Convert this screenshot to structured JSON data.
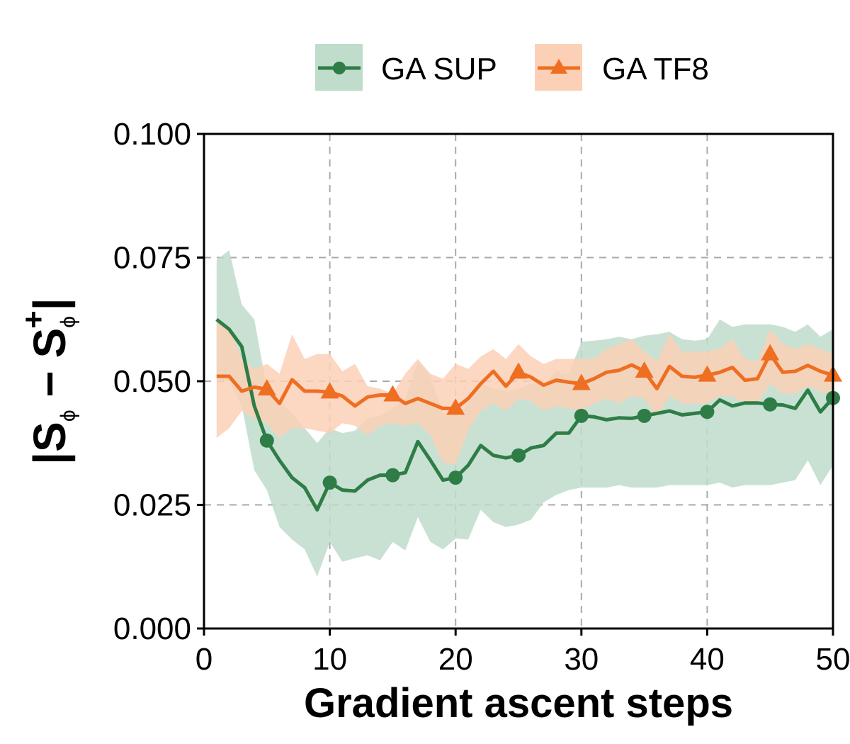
{
  "chart_data": {
    "type": "line",
    "xlabel": "Gradient ascent steps",
    "ylabel": "|S_phi - S_phi^+|",
    "xlim": [
      0,
      50
    ],
    "ylim": [
      0.0,
      0.1
    ],
    "x_ticks": [
      "0",
      "10",
      "20",
      "30",
      "40",
      "50"
    ],
    "y_ticks": [
      "0.000",
      "0.025",
      "0.050",
      "0.075",
      "0.100"
    ],
    "grid": "dashed, both axes",
    "legend_position": "top-center",
    "x": [
      1,
      2,
      3,
      4,
      5,
      6,
      7,
      8,
      9,
      10,
      11,
      12,
      13,
      14,
      15,
      16,
      17,
      18,
      19,
      20,
      21,
      22,
      23,
      24,
      25,
      26,
      27,
      28,
      29,
      30,
      31,
      32,
      33,
      34,
      35,
      36,
      37,
      38,
      39,
      40,
      41,
      42,
      43,
      44,
      45,
      46,
      47,
      48,
      49,
      50
    ],
    "series": [
      {
        "name": "GA SUP",
        "color": "#2e7d46",
        "band_color": "#c0dccb",
        "marker": "circle",
        "marker_every": 5,
        "values": [
          0.0625,
          0.0605,
          0.057,
          0.045,
          0.038,
          0.034,
          0.0305,
          0.0285,
          0.024,
          0.0295,
          0.028,
          0.0278,
          0.03,
          0.031,
          0.031,
          0.0315,
          0.0378,
          0.034,
          0.03,
          0.0305,
          0.033,
          0.037,
          0.035,
          0.0345,
          0.035,
          0.0365,
          0.037,
          0.0395,
          0.0395,
          0.043,
          0.0428,
          0.0422,
          0.0426,
          0.0425,
          0.043,
          0.0435,
          0.044,
          0.0432,
          0.0435,
          0.0438,
          0.0462,
          0.045,
          0.0456,
          0.0456,
          0.0453,
          0.0452,
          0.0445,
          0.0482,
          0.0438,
          0.0466
        ],
        "lower": [
          0.0505,
          0.05,
          0.045,
          0.032,
          0.028,
          0.0205,
          0.018,
          0.016,
          0.0105,
          0.0175,
          0.0135,
          0.0142,
          0.0148,
          0.0138,
          0.0175,
          0.0158,
          0.0225,
          0.0175,
          0.016,
          0.0182,
          0.018,
          0.024,
          0.0215,
          0.0205,
          0.021,
          0.022,
          0.0255,
          0.027,
          0.028,
          0.0285,
          0.0285,
          0.0285,
          0.029,
          0.0285,
          0.0285,
          0.0285,
          0.029,
          0.029,
          0.029,
          0.029,
          0.0295,
          0.0285,
          0.029,
          0.029,
          0.029,
          0.0295,
          0.03,
          0.034,
          0.029,
          0.033
        ],
        "upper": [
          0.0745,
          0.0765,
          0.0655,
          0.0625,
          0.0485,
          0.046,
          0.0435,
          0.0405,
          0.0375,
          0.0405,
          0.0395,
          0.04,
          0.0425,
          0.043,
          0.0445,
          0.0465,
          0.054,
          0.051,
          0.0435,
          0.043,
          0.0455,
          0.0495,
          0.0485,
          0.048,
          0.0485,
          0.0495,
          0.0495,
          0.052,
          0.0515,
          0.058,
          0.0582,
          0.0585,
          0.059,
          0.0585,
          0.0592,
          0.0595,
          0.06,
          0.0585,
          0.0582,
          0.0585,
          0.0625,
          0.061,
          0.0615,
          0.0615,
          0.0615,
          0.061,
          0.06,
          0.0615,
          0.059,
          0.0605
        ]
      },
      {
        "name": "GA TF8",
        "color": "#ee6e22",
        "band_color": "#fcd0b6",
        "marker": "triangle",
        "marker_every": 5,
        "values": [
          0.051,
          0.051,
          0.048,
          0.0488,
          0.0484,
          0.0455,
          0.0503,
          0.048,
          0.048,
          0.0478,
          0.047,
          0.045,
          0.0468,
          0.0472,
          0.0472,
          0.0455,
          0.0465,
          0.0455,
          0.0445,
          0.0445,
          0.0465,
          0.0495,
          0.052,
          0.049,
          0.0518,
          0.0508,
          0.0492,
          0.0502,
          0.0498,
          0.0495,
          0.0505,
          0.0518,
          0.0522,
          0.0533,
          0.052,
          0.0485,
          0.053,
          0.051,
          0.0508,
          0.0512,
          0.0518,
          0.0528,
          0.0502,
          0.0505,
          0.0555,
          0.0518,
          0.052,
          0.0532,
          0.052,
          0.0512
        ],
        "lower": [
          0.0385,
          0.0405,
          0.044,
          0.0425,
          0.0415,
          0.0385,
          0.0405,
          0.0405,
          0.04,
          0.0395,
          0.0415,
          0.041,
          0.039,
          0.041,
          0.0415,
          0.041,
          0.0415,
          0.039,
          0.0335,
          0.0332,
          0.04,
          0.044,
          0.0455,
          0.044,
          0.0465,
          0.046,
          0.044,
          0.045,
          0.0445,
          0.044,
          0.0455,
          0.0465,
          0.0455,
          0.047,
          0.0465,
          0.043,
          0.047,
          0.0455,
          0.0455,
          0.0455,
          0.047,
          0.047,
          0.0455,
          0.0455,
          0.0495,
          0.0475,
          0.0475,
          0.049,
          0.048,
          0.047
        ],
        "upper": [
          0.062,
          0.061,
          0.0545,
          0.0525,
          0.0535,
          0.0515,
          0.0595,
          0.0545,
          0.0555,
          0.0555,
          0.052,
          0.0535,
          0.049,
          0.0485,
          0.0475,
          0.0515,
          0.0545,
          0.0515,
          0.0505,
          0.0535,
          0.0525,
          0.055,
          0.0565,
          0.0545,
          0.0575,
          0.055,
          0.0535,
          0.0545,
          0.0545,
          0.0545,
          0.0545,
          0.0565,
          0.0575,
          0.0585,
          0.056,
          0.054,
          0.0595,
          0.056,
          0.056,
          0.056,
          0.0565,
          0.0585,
          0.0545,
          0.054,
          0.0605,
          0.0575,
          0.0565,
          0.0575,
          0.0565,
          0.0555
        ]
      }
    ]
  }
}
